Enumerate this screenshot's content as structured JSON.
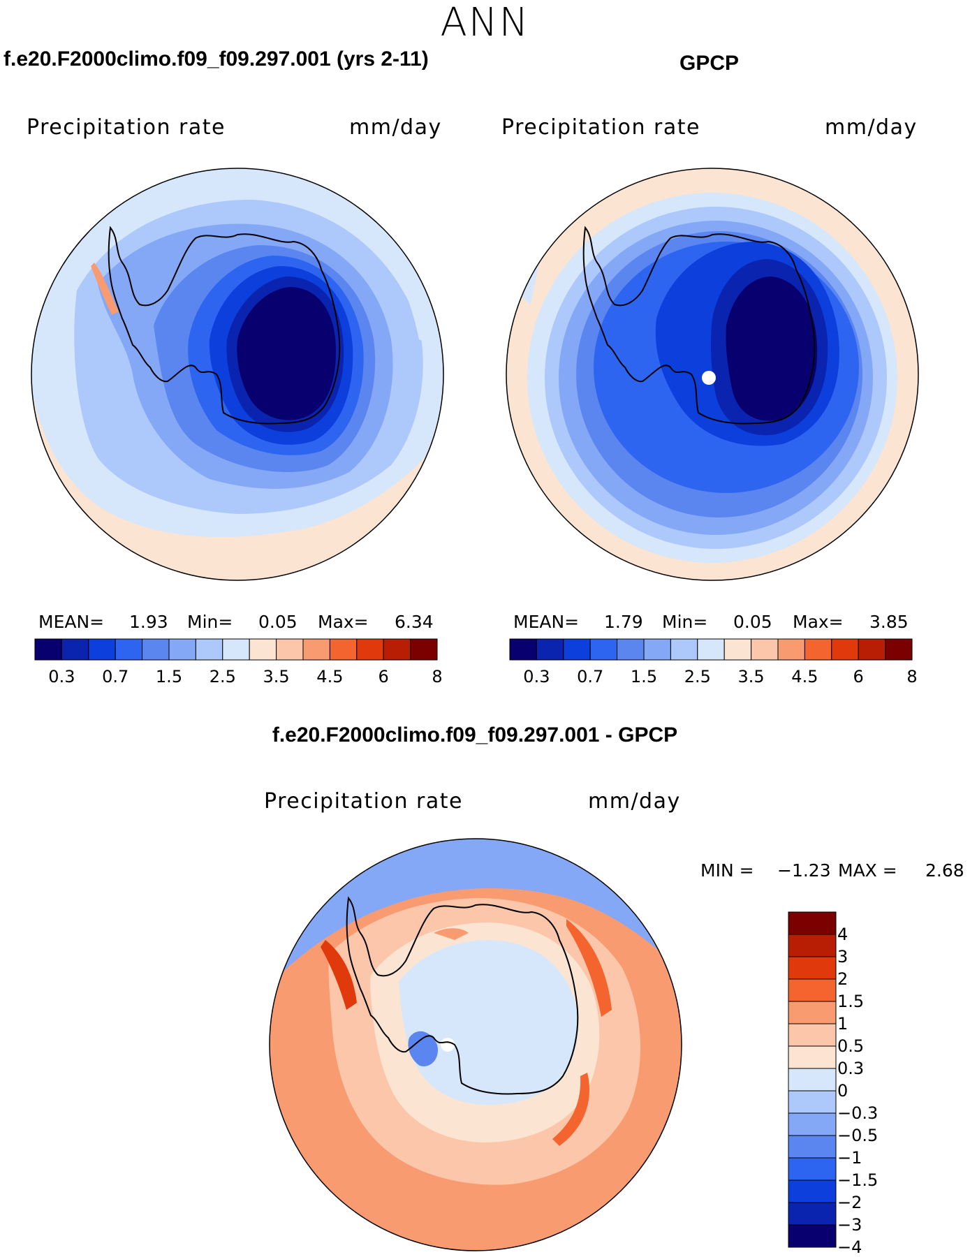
{
  "figure": {
    "season": "ANN"
  },
  "panels": [
    {
      "title": "f.e20.F2000climo.f09_f09.297.001 (yrs 2-11)",
      "variable": "Precipitation rate",
      "units": "mm/day",
      "stats": {
        "mean_label": "MEAN=",
        "mean": "1.93",
        "min_label": "Min=",
        "min": "0.05",
        "max_label": "Max=",
        "max": "6.34"
      }
    },
    {
      "title": "GPCP",
      "variable": "Precipitation rate",
      "units": "mm/day",
      "stats": {
        "mean_label": "MEAN=",
        "mean": "1.79",
        "min_label": "Min=",
        "min": "0.05",
        "max_label": "Max=",
        "max": "3.85"
      }
    },
    {
      "title": "f.e20.F2000climo.f09_f09.297.001 - GPCP",
      "variable": "Precipitation rate",
      "units": "mm/day",
      "stats": {
        "min_label": "MIN =",
        "min": "−1.23",
        "max_label": "MAX =",
        "max": "2.68"
      }
    }
  ],
  "abs_colorbar": {
    "colors": [
      "#08006e",
      "#0a24b0",
      "#0c3fdc",
      "#2e65f0",
      "#5b86f0",
      "#84a8f5",
      "#adc8fa",
      "#d6e7fb",
      "#fbe4d2",
      "#fbc6aa",
      "#f99b71",
      "#f3642e",
      "#e03a0c",
      "#b81e04",
      "#7b0000"
    ],
    "tick_labels": [
      "0.3",
      "0.7",
      "1.5",
      "2.5",
      "3.5",
      "4.5",
      "6",
      "8"
    ]
  },
  "diff_colorbar": {
    "colors_top_to_bottom": [
      "#7b0000",
      "#b81e04",
      "#e03a0c",
      "#f3642e",
      "#f99b71",
      "#fbc6aa",
      "#fbe4d2",
      "#d6e7fb",
      "#adc8fa",
      "#84a8f5",
      "#5b86f0",
      "#2e65f0",
      "#0c3fdc",
      "#0a24b0",
      "#08006e"
    ],
    "tick_labels_top_to_bottom": [
      "4",
      "3",
      "2",
      "1.5",
      "1",
      "0.5",
      "0.3",
      "0",
      "−0.3",
      "−0.5",
      "−1",
      "−1.5",
      "−2",
      "−3",
      "−4"
    ]
  }
}
